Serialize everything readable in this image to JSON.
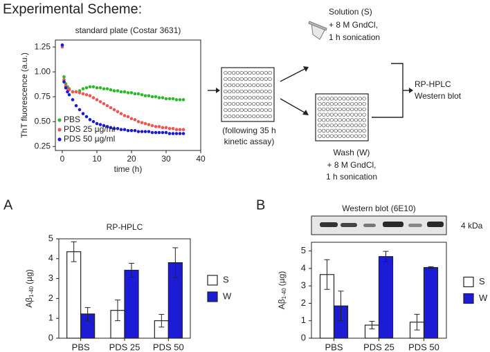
{
  "title": "Experimental Scheme:",
  "diagram": {
    "plate_caption": [
      "(following 35 h",
      "kinetic assay)"
    ],
    "solution": [
      "Solution (S)",
      "+ 8 M GndCl,",
      "1 h sonication"
    ],
    "wash": [
      "Wash (W)",
      "+ 8 M GndCl,",
      "1 h sonication"
    ],
    "analysis": [
      "RP-HPLC",
      "Western blot"
    ]
  },
  "chart_data": [
    {
      "type": "scatter",
      "title": "standard plate (Costar 3631)",
      "xlabel": "time (h)",
      "ylabel": "ThT fluorescence (a.u.)",
      "x": [
        0,
        0.5,
        1,
        1.5,
        2,
        3,
        4,
        5,
        6,
        7,
        8,
        9,
        10,
        11,
        12,
        13,
        14,
        15,
        16,
        17,
        18,
        19,
        20,
        21,
        22,
        23,
        24,
        25,
        26,
        27,
        28,
        29,
        30,
        31,
        32,
        33,
        34,
        35
      ],
      "series": [
        {
          "name": "PBS",
          "color": "#2eb82e",
          "values": [
            1.27,
            0.95,
            0.88,
            0.85,
            0.83,
            0.8,
            0.8,
            0.81,
            0.83,
            0.84,
            0.85,
            0.85,
            0.84,
            0.84,
            0.83,
            0.83,
            0.82,
            0.81,
            0.81,
            0.8,
            0.8,
            0.79,
            0.79,
            0.78,
            0.78,
            0.77,
            0.76,
            0.76,
            0.75,
            0.75,
            0.74,
            0.74,
            0.73,
            0.73,
            0.73,
            0.72,
            0.72,
            0.72
          ]
        },
        {
          "name": "PDS 25 µg/ml",
          "color": "#f05555",
          "values": [
            1.25,
            0.92,
            0.86,
            0.83,
            0.82,
            0.8,
            0.8,
            0.79,
            0.78,
            0.77,
            0.76,
            0.74,
            0.72,
            0.7,
            0.68,
            0.66,
            0.64,
            0.62,
            0.6,
            0.58,
            0.56,
            0.55,
            0.53,
            0.52,
            0.5,
            0.49,
            0.48,
            0.47,
            0.46,
            0.45,
            0.45,
            0.44,
            0.44,
            0.43,
            0.43,
            0.42,
            0.42,
            0.42
          ]
        },
        {
          "name": "PDS 50 µg/ml",
          "color": "#1a1ad0",
          "values": [
            1.27,
            0.9,
            0.84,
            0.8,
            0.77,
            0.72,
            0.66,
            0.62,
            0.58,
            0.55,
            0.52,
            0.5,
            0.48,
            0.47,
            0.46,
            0.45,
            0.44,
            0.43,
            0.43,
            0.42,
            0.42,
            0.41,
            0.41,
            0.41,
            0.4,
            0.4,
            0.4,
            0.4,
            0.39,
            0.39,
            0.39,
            0.39,
            0.39,
            0.38,
            0.38,
            0.38,
            0.38,
            0.38
          ]
        }
      ],
      "xlim": [
        -2,
        40
      ],
      "xticks": [
        0,
        10,
        20,
        30,
        40
      ],
      "ylim": [
        0.21,
        1.32
      ],
      "yticks": [
        0.25,
        {
          "value": 0.5,
          "label": "0.50"
        },
        0.75,
        {
          "value": 1,
          "label": "1.00"
        },
        1.25
      ],
      "legend": "lower left"
    },
    {
      "type": "bar",
      "panel": "A",
      "title": "RP-HPLC",
      "ylabel": {
        "base": "Aβ",
        "sub": "1-40",
        "unit": "(µg)"
      },
      "categories": [
        "PBS",
        "PDS 25",
        "PDS 50"
      ],
      "series": [
        {
          "name": "S",
          "color": "#ffffff",
          "values": [
            4.35,
            1.4,
            0.88
          ],
          "errors": [
            0.5,
            0.52,
            0.32
          ]
        },
        {
          "name": "W",
          "color": "#1c1cd6",
          "values": [
            1.22,
            3.42,
            3.8
          ],
          "errors": [
            0.32,
            0.35,
            0.75
          ]
        }
      ],
      "ylim": [
        0,
        5
      ],
      "yticks": [
        0,
        1,
        2,
        3,
        4,
        5
      ],
      "legend": "right"
    },
    {
      "type": "bar",
      "panel": "B",
      "title": "Western blot (6E10)",
      "blot_label": "4 kDa",
      "ylabel": {
        "base": "Aβ",
        "sub": "1-40",
        "unit": "(µg)"
      },
      "categories": [
        "PBS",
        "PDS 25",
        "PDS 50"
      ],
      "series": [
        {
          "name": "S",
          "color": "#ffffff",
          "values": [
            3.65,
            0.75,
            0.92
          ],
          "errors": [
            0.85,
            0.22,
            0.45
          ]
        },
        {
          "name": "W",
          "color": "#1c1cd6",
          "values": [
            1.85,
            4.68,
            4.05
          ],
          "errors": [
            0.85,
            0.3,
            0.05
          ]
        }
      ],
      "ylim": [
        0,
        5.5
      ],
      "yticks": [
        0,
        1,
        2,
        3,
        4,
        5
      ],
      "legend": "right"
    }
  ]
}
